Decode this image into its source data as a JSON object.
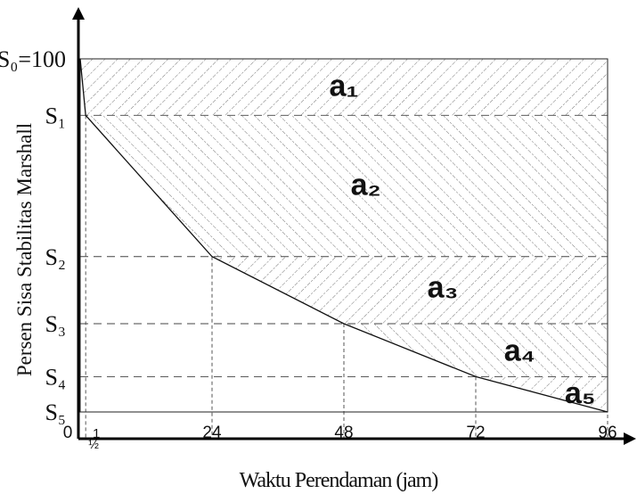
{
  "chart_data": {
    "type": "line",
    "xlabel": "Waktu Perendaman (jam)",
    "ylabel": "Persen Sisa Stabilitas Marshall",
    "xlim": [
      0,
      96
    ],
    "ylim": [
      0,
      100
    ],
    "x_ticks": [
      {
        "value": 0,
        "label": "0"
      },
      {
        "value": 0.5,
        "label": "½"
      },
      {
        "value": 1,
        "label": "1"
      },
      {
        "value": 24,
        "label": "24"
      },
      {
        "value": 48,
        "label": "48"
      },
      {
        "value": 72,
        "label": "72"
      },
      {
        "value": 96,
        "label": "96"
      }
    ],
    "y_ticks": [
      {
        "value": 100,
        "label": "S₀=100"
      },
      {
        "value": 84,
        "label": "S₁"
      },
      {
        "value": 44,
        "label": "S₂"
      },
      {
        "value": 25,
        "label": "S₃"
      },
      {
        "value": 10,
        "label": "S₄"
      },
      {
        "value": 0,
        "label": "S₅"
      }
    ],
    "curve": {
      "x": [
        0,
        1,
        24,
        48,
        72,
        96
      ],
      "y": [
        100,
        84,
        44,
        25,
        10,
        0
      ]
    },
    "hatch_pattern": "diagonal hatch, direction alternating per band",
    "area_labels": [
      {
        "label": "a₁",
        "x": 48,
        "y": 92
      },
      {
        "label": "a₂",
        "x": 52,
        "y": 64
      },
      {
        "label": "a₃",
        "x": 66,
        "y": 35
      },
      {
        "label": "a₄",
        "x": 80,
        "y": 17
      },
      {
        "label": "a₅",
        "x": 91,
        "y": 5
      }
    ],
    "grid": false,
    "legend": "none"
  }
}
